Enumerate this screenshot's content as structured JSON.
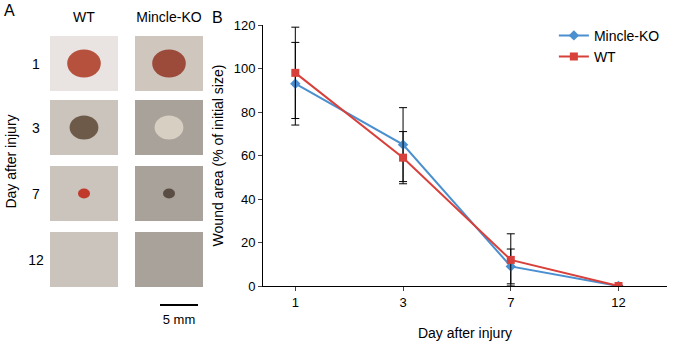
{
  "panel_a": {
    "label": "A",
    "columns": [
      "WT",
      "Mincle-KO"
    ],
    "rows": [
      "1",
      "3",
      "7",
      "12"
    ],
    "row_title": "Day after injury",
    "scale_bar": "5 mm"
  },
  "chart_data": {
    "panel_label": "B",
    "type": "line",
    "categories": [
      "1",
      "3",
      "7",
      "12"
    ],
    "series": [
      {
        "name": "Mincle-KO",
        "color": "#4a8fd0",
        "marker": "diamond",
        "values": [
          93,
          65,
          9,
          0
        ],
        "error": [
          19,
          17,
          8,
          0
        ]
      },
      {
        "name": "WT",
        "color": "#d8403b",
        "marker": "square",
        "values": [
          98,
          59,
          12,
          0
        ],
        "error": [
          21,
          12,
          12,
          0
        ]
      }
    ],
    "xlabel": "Day after injury",
    "ylabel": "Wound area (% of initial size)",
    "ylim": [
      0,
      120
    ],
    "yticks": [
      0,
      20,
      40,
      60,
      80,
      100,
      120
    ],
    "grid": false,
    "legend": "upper right"
  }
}
